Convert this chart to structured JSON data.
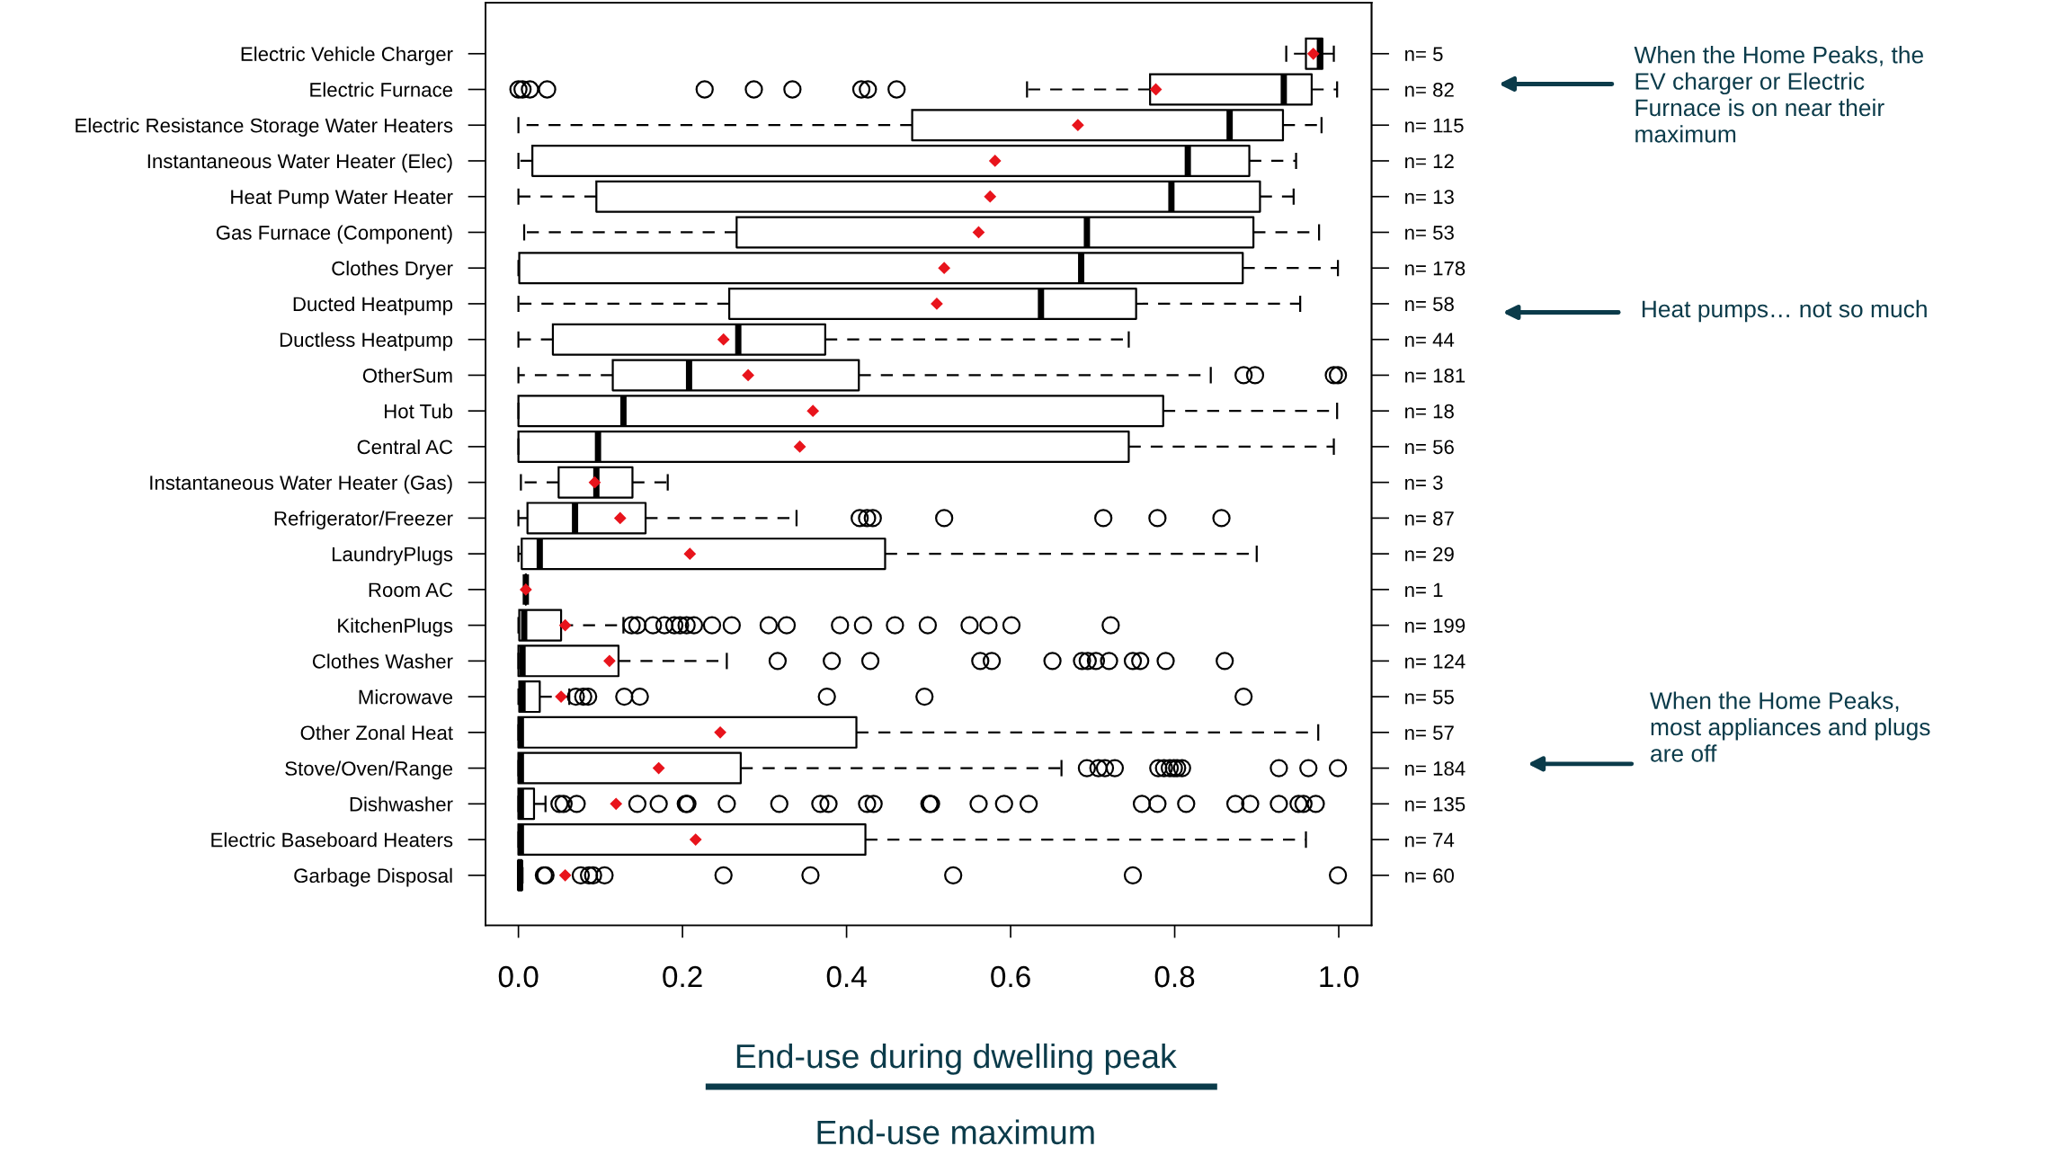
{
  "chart_data": {
    "type": "box",
    "orientation": "horizontal",
    "xlabel": "End-use during dwelling peak",
    "categories": [
      "Electric Vehicle Charger",
      "Electric Furnace",
      "Electric Resistance Storage Water Heaters",
      "Instantaneous Water Heater (Elec)",
      "Heat Pump Water Heater",
      "Gas Furnace (Component)",
      "Clothes Dryer",
      "Ducted Heatpump",
      "Ductless Heatpump",
      "OtherSum",
      "Hot Tub",
      "Central AC",
      "Instantaneous Water Heater (Gas)",
      "Refrigerator/Freezer",
      "LaundryPlugs",
      "Room AC",
      "KitchenPlugs",
      "Clothes Washer",
      "Microwave",
      "Other Zonal Heat",
      "Stove/Oven/Range",
      "Dishwasher",
      "Electric Baseboard Heaters",
      "Garbage Disposal"
    ],
    "y2_categories": [
      "n= 5",
      "n= 82",
      "n= 115",
      "n= 12",
      "n= 13",
      "n= 53",
      "n= 178",
      "n= 58",
      "n= 44",
      "n= 181",
      "n= 18",
      "n= 56",
      "n= 3",
      "n= 87",
      "n= 29",
      "n= 1",
      "n= 199",
      "n= 124",
      "n= 55",
      "n= 57",
      "n= 184",
      "n= 135",
      "n= 74",
      "n= 60"
    ],
    "boxes": [
      {
        "low": 0.936,
        "q1": 0.96,
        "median": 0.977,
        "q3": 0.98,
        "high": 0.994,
        "mean": 0.969
      },
      {
        "low": 0.62,
        "q1": 0.77,
        "median": 0.933,
        "q3": 0.967,
        "high": 0.998,
        "mean": 0.777,
        "outliers": [
          0,
          0.005,
          0.014,
          0.035,
          0.227,
          0.287,
          0.334,
          0.418,
          0.426,
          0.461
        ]
      },
      {
        "low": 0,
        "q1": 0.48,
        "median": 0.867,
        "q3": 0.932,
        "high": 0.979,
        "mean": 0.682
      },
      {
        "low": 0,
        "q1": 0.017,
        "median": 0.816,
        "q3": 0.891,
        "high": 0.948,
        "mean": 0.581
      },
      {
        "low": 0,
        "q1": 0.095,
        "median": 0.796,
        "q3": 0.904,
        "high": 0.945,
        "mean": 0.575
      },
      {
        "low": 0.007,
        "q1": 0.266,
        "median": 0.693,
        "q3": 0.896,
        "high": 0.976,
        "mean": 0.561
      },
      {
        "low": 0,
        "q1": 0.001,
        "median": 0.686,
        "q3": 0.883,
        "high": 0.999,
        "mean": 0.519
      },
      {
        "low": 0,
        "q1": 0.257,
        "median": 0.637,
        "q3": 0.753,
        "high": 0.953,
        "mean": 0.51
      },
      {
        "low": 0,
        "q1": 0.042,
        "median": 0.268,
        "q3": 0.374,
        "high": 0.744,
        "mean": 0.25
      },
      {
        "low": 0,
        "q1": 0.115,
        "median": 0.208,
        "q3": 0.415,
        "high": 0.844,
        "mean": 0.28,
        "outliers": [
          0.884,
          0.898,
          0.994,
          0.999
        ]
      },
      {
        "low": 0,
        "q1": 0,
        "median": 0.128,
        "q3": 0.786,
        "high": 0.998,
        "mean": 0.359
      },
      {
        "low": 0,
        "q1": 0,
        "median": 0.097,
        "q3": 0.744,
        "high": 0.994,
        "mean": 0.343
      },
      {
        "low": 0.003,
        "q1": 0.049,
        "median": 0.095,
        "q3": 0.139,
        "high": 0.182,
        "mean": 0.093
      },
      {
        "low": 0,
        "q1": 0.011,
        "median": 0.069,
        "q3": 0.155,
        "high": 0.339,
        "mean": 0.124,
        "outliers": [
          0.416,
          0.425,
          0.432,
          0.519,
          0.713,
          0.779,
          0.857
        ]
      },
      {
        "low": 0,
        "q1": 0.004,
        "median": 0.026,
        "q3": 0.447,
        "high": 0.9,
        "mean": 0.209
      },
      {
        "low": 0.009,
        "q1": 0.009,
        "median": 0.009,
        "q3": 0.009,
        "high": 0.009,
        "mean": 0.009
      },
      {
        "low": 0,
        "q1": 0.001,
        "median": 0.007,
        "q3": 0.052,
        "high": 0.128,
        "mean": 0.057,
        "outliers": [
          0.138,
          0.145,
          0.164,
          0.178,
          0.19,
          0.197,
          0.205,
          0.214,
          0.236,
          0.26,
          0.305,
          0.327,
          0.392,
          0.42,
          0.459,
          0.499,
          0.55,
          0.573,
          0.601,
          0.722
        ]
      },
      {
        "low": 0,
        "q1": 0,
        "median": 0.005,
        "q3": 0.122,
        "high": 0.254,
        "mean": 0.111,
        "outliers": [
          0.316,
          0.382,
          0.429,
          0.563,
          0.577,
          0.651,
          0.687,
          0.694,
          0.704,
          0.72,
          0.749,
          0.758,
          0.789,
          0.861
        ]
      },
      {
        "low": 0,
        "q1": 0.001,
        "median": 0.005,
        "q3": 0.026,
        "high": 0.062,
        "mean": 0.052,
        "outliers": [
          0.07,
          0.079,
          0.085,
          0.129,
          0.148,
          0.376,
          0.495,
          0.884
        ]
      },
      {
        "low": 0,
        "q1": 0,
        "median": 0.003,
        "q3": 0.412,
        "high": 0.975,
        "mean": 0.246
      },
      {
        "low": 0,
        "q1": 0,
        "median": 0.003,
        "q3": 0.271,
        "high": 0.662,
        "mean": 0.171,
        "outliers": [
          0.693,
          0.707,
          0.715,
          0.727,
          0.78,
          0.787,
          0.794,
          0.799,
          0.803,
          0.809,
          0.927,
          0.963,
          0.999
        ]
      },
      {
        "low": 0,
        "q1": 0,
        "median": 0.003,
        "q3": 0.019,
        "high": 0.033,
        "mean": 0.119,
        "outliers": [
          0.05,
          0.055,
          0.071,
          0.145,
          0.171,
          0.204,
          0.206,
          0.254,
          0.318,
          0.368,
          0.378,
          0.425,
          0.433,
          0.501,
          0.503,
          0.561,
          0.592,
          0.622,
          0.76,
          0.779,
          0.814,
          0.874,
          0.892,
          0.927,
          0.951,
          0.957,
          0.972
        ]
      },
      {
        "low": 0,
        "q1": 0,
        "median": 0.003,
        "q3": 0.423,
        "high": 0.96,
        "mean": 0.216
      },
      {
        "low": 0,
        "q1": 0,
        "median": 0.002,
        "q3": 0.004,
        "high": 0.005,
        "mean": 0.057,
        "outliers": [
          0.031,
          0.033,
          0.076,
          0.086,
          0.091,
          0.105,
          0.25,
          0.356,
          0.53,
          0.749,
          0.999
        ]
      }
    ],
    "xlim": [
      -0.04,
      1.04
    ],
    "xticks": [
      {
        "value": 0,
        "label": "0.0"
      },
      {
        "value": 0.2,
        "label": "0.2"
      },
      {
        "value": 0.4,
        "label": "0.4"
      },
      {
        "value": 0.6,
        "label": "0.6"
      },
      {
        "value": 0.8,
        "label": "0.8"
      },
      {
        "value": 1,
        "label": "1.0"
      }
    ],
    "annotations": [
      "When the Home Peaks, the\nEV charger or Electric\nFurnace is on near their\nmaximum",
      "Heat pumps… not so much",
      "When the Home Peaks,\nmost appliances and plugs\nare off",
      "End-use maximum"
    ]
  }
}
